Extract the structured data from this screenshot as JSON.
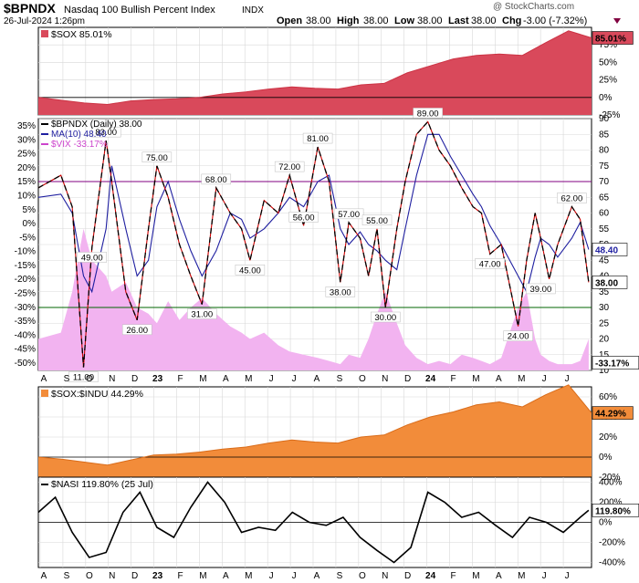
{
  "header": {
    "symbol": "$BPNDX",
    "name": "Nasdaq 100 Bullish Percent Index",
    "exchange": "INDX",
    "date": "26-Jul-2024 1:26pm",
    "open_label": "Open",
    "open": "38.00",
    "high_label": "High",
    "high": "38.00",
    "low_label": "Low",
    "low": "38.00",
    "last_label": "Last",
    "last": "38.00",
    "chg_label": "Chg",
    "chg": "-3.00 (-7.32%)",
    "watermark": "@ StockCharts.com"
  },
  "colors": {
    "sox": "#cc3344",
    "sox_fill": "#d9495b",
    "price": "#000000",
    "ma": "#1f1fa0",
    "bp_red": "#cc0000",
    "vix": "#f2b3f0",
    "orange": "#f28c3a",
    "orange_line": "#d96c1a",
    "grid": "#d8d8d8",
    "hline_purple": "#800080",
    "hline_green": "#006400"
  },
  "x_axis": {
    "labels": [
      "A",
      "S",
      "O",
      "N",
      "D",
      "23",
      "F",
      "M",
      "A",
      "M",
      "J",
      "J",
      "A",
      "S",
      "O",
      "N",
      "D",
      "24",
      "F",
      "M",
      "A",
      "M",
      "J",
      "J"
    ],
    "bold_labels": [
      "23",
      "24"
    ]
  },
  "chart_data": [
    {
      "panel": "sox",
      "type": "area",
      "legend": "$SOX 85.01%",
      "last_value_label": "85.01%",
      "y_ticks": [
        "75%",
        "50%",
        "25%",
        "0%",
        "-25%"
      ],
      "ylim": [
        -25,
        100
      ],
      "x": [
        0,
        1,
        2,
        3,
        4,
        5,
        6,
        7,
        8,
        9,
        10,
        11,
        12,
        13,
        14,
        15,
        16,
        17,
        18,
        19,
        20,
        21,
        22,
        23,
        24
      ],
      "values": [
        0,
        -4,
        -8,
        -10,
        -5,
        -3,
        -2,
        0,
        5,
        8,
        12,
        15,
        13,
        12,
        18,
        20,
        35,
        45,
        55,
        60,
        62,
        60,
        78,
        95,
        85
      ]
    },
    {
      "panel": "bpndx",
      "type": "line",
      "legend": [
        {
          "name": "$BPNDX (Daily) 38.00"
        },
        {
          "name": "MA(10) 48.40"
        },
        {
          "name": "$VIX -33.17%"
        }
      ],
      "y_ticks_left": [
        "35%",
        "30%",
        "25%",
        "20%",
        "15%",
        "10%",
        "5%",
        "0%",
        "-5%",
        "-10%",
        "-15%",
        "-20%",
        "-25%",
        "-30%",
        "-35%",
        "-40%",
        "-45%",
        "-50%"
      ],
      "y_ticks_right": [
        "90",
        "85",
        "80",
        "75",
        "70",
        "65",
        "60",
        "55",
        "50",
        "45",
        "40",
        "35",
        "30",
        "25",
        "20",
        "15",
        "10"
      ],
      "ylim": [
        10,
        90
      ],
      "hlines": [
        70,
        30
      ],
      "price_label": "38.00",
      "ma_label": "48.40",
      "vix_label": "-33.17%",
      "annotations": [
        {
          "x": 2.4,
          "y": 83,
          "text": "83.00"
        },
        {
          "x": 1.9,
          "y": 49,
          "text": "49.00"
        },
        {
          "x": 1.6,
          "y": 11,
          "text": "11.00"
        },
        {
          "x": 4.2,
          "y": 75,
          "text": "75.00"
        },
        {
          "x": 3.5,
          "y": 26,
          "text": "26.00"
        },
        {
          "x": 6.3,
          "y": 68,
          "text": "68.00"
        },
        {
          "x": 5.8,
          "y": 31,
          "text": "31.00"
        },
        {
          "x": 7.5,
          "y": 45,
          "text": "45.00"
        },
        {
          "x": 8.9,
          "y": 72,
          "text": "72.00"
        },
        {
          "x": 9.9,
          "y": 81,
          "text": "81.00"
        },
        {
          "x": 9.4,
          "y": 56,
          "text": "56.00"
        },
        {
          "x": 11.0,
          "y": 57,
          "text": "57.00"
        },
        {
          "x": 10.7,
          "y": 38,
          "text": "38.00"
        },
        {
          "x": 12.0,
          "y": 55,
          "text": "55.00"
        },
        {
          "x": 12.3,
          "y": 30,
          "text": "30.00"
        },
        {
          "x": 13.8,
          "y": 89,
          "text": "89.00"
        },
        {
          "x": 16.0,
          "y": 47,
          "text": "47.00"
        },
        {
          "x": 17.0,
          "y": 24,
          "text": "24.00"
        },
        {
          "x": 17.8,
          "y": 39,
          "text": "39.00"
        },
        {
          "x": 18.9,
          "y": 62,
          "text": "62.00"
        }
      ],
      "x": [
        0,
        0.8,
        1.2,
        1.6,
        1.9,
        2.4,
        2.6,
        3.1,
        3.5,
        3.9,
        4.2,
        4.6,
        5.0,
        5.4,
        5.8,
        6.3,
        6.8,
        7.2,
        7.5,
        8.0,
        8.5,
        8.9,
        9.4,
        9.9,
        10.3,
        10.7,
        11.0,
        11.4,
        11.7,
        12.0,
        12.3,
        12.7,
        13.0,
        13.4,
        13.8,
        14.2,
        14.6,
        15.0,
        15.4,
        15.7,
        16.0,
        16.4,
        17.0,
        17.3,
        17.6,
        17.8,
        18.1,
        18.4,
        18.9,
        19.2,
        19.5
      ],
      "bpndx": [
        68,
        72,
        62,
        11,
        49,
        83,
        70,
        35,
        26,
        55,
        75,
        65,
        50,
        40,
        31,
        68,
        60,
        55,
        45,
        64,
        60,
        72,
        56,
        81,
        70,
        38,
        57,
        52,
        40,
        55,
        30,
        55,
        70,
        85,
        89,
        80,
        75,
        68,
        62,
        60,
        47,
        50,
        24,
        45,
        60,
        52,
        39,
        50,
        62,
        58,
        38
      ],
      "ma": [
        65,
        66,
        60,
        40,
        35,
        55,
        75,
        55,
        40,
        45,
        62,
        70,
        58,
        48,
        40,
        48,
        60,
        58,
        52,
        55,
        60,
        65,
        62,
        70,
        72,
        55,
        50,
        54,
        50,
        48,
        45,
        42,
        55,
        72,
        85,
        85,
        78,
        72,
        66,
        62,
        56,
        50,
        40,
        35,
        46,
        52,
        50,
        46,
        52,
        57,
        48.4
      ],
      "vix": [
        20,
        22,
        35,
        55,
        45,
        40,
        35,
        38,
        30,
        28,
        25,
        32,
        26,
        30,
        33,
        28,
        24,
        22,
        20,
        22,
        18,
        16,
        15,
        14,
        13,
        12,
        15,
        14,
        20,
        28,
        35,
        25,
        18,
        14,
        12,
        13,
        12,
        15,
        14,
        13,
        12,
        14,
        30,
        35,
        20,
        15,
        13,
        12,
        12,
        13,
        20
      ]
    },
    {
      "panel": "sox_indu",
      "type": "area",
      "legend": "$SOX:$INDU 44.29%",
      "last_value_label": "44.29%",
      "y_ticks": [
        "60%",
        "40%",
        "20%",
        "0%",
        "-20%"
      ],
      "ylim": [
        -20,
        70
      ],
      "x": [
        0,
        1,
        2,
        3,
        4,
        5,
        6,
        7,
        8,
        9,
        10,
        11,
        12,
        13,
        14,
        15,
        16,
        17,
        18,
        19,
        20,
        21,
        22,
        23,
        24
      ],
      "values": [
        0,
        -2,
        -5,
        -8,
        -3,
        2,
        3,
        5,
        8,
        10,
        14,
        17,
        15,
        14,
        20,
        22,
        32,
        40,
        45,
        52,
        55,
        50,
        62,
        72,
        44
      ]
    },
    {
      "panel": "nasi",
      "type": "line",
      "legend": "$NASI 119.80% (25 Jul)",
      "last_value_label": "119.80%",
      "y_ticks": [
        "400%",
        "200%",
        "0%",
        "-200%",
        "-400%"
      ],
      "ylim": [
        -450,
        450
      ],
      "x": [
        0,
        0.6,
        1.2,
        1.8,
        2.4,
        3.0,
        3.6,
        4.2,
        4.8,
        5.4,
        6.0,
        6.6,
        7.2,
        7.8,
        8.4,
        9.0,
        9.6,
        10.2,
        10.8,
        11.4,
        12.0,
        12.6,
        13.2,
        13.8,
        14.4,
        15.0,
        15.6,
        16.2,
        16.8,
        17.4,
        18.0,
        18.6,
        19.2,
        19.5
      ],
      "values": [
        100,
        250,
        -100,
        -350,
        -300,
        100,
        300,
        -50,
        -150,
        150,
        400,
        200,
        -100,
        -50,
        -80,
        100,
        0,
        -30,
        50,
        -150,
        -280,
        -400,
        -250,
        300,
        200,
        50,
        100,
        -30,
        -150,
        50,
        0,
        -100,
        50,
        119.8
      ]
    }
  ]
}
